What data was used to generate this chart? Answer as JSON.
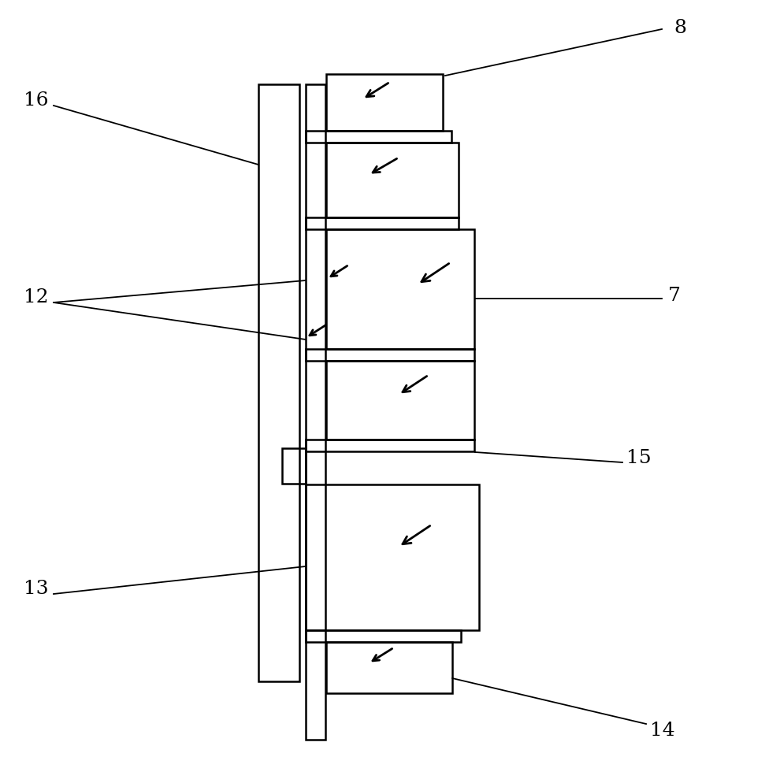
{
  "background_color": "#ffffff",
  "line_color": "#000000",
  "line_width": 1.5,
  "fig_width": 9.76,
  "fig_height": 9.95,
  "dpi": 100
}
